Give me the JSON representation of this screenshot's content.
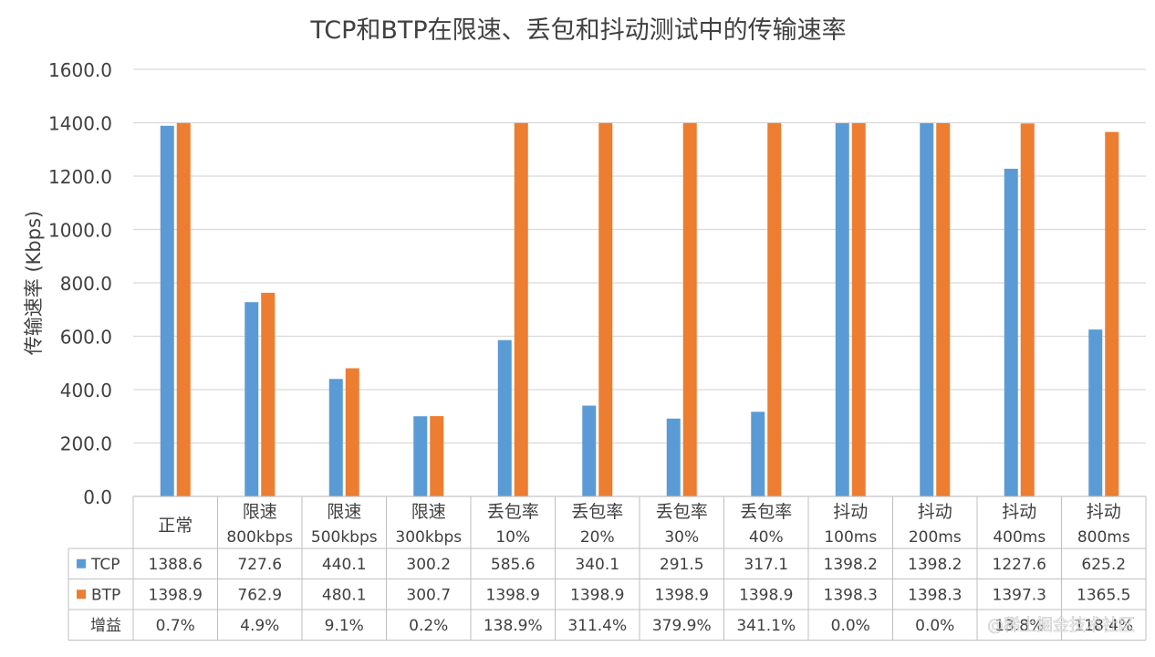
{
  "chart_data": {
    "type": "bar",
    "title": "TCP和BTP在限速、丢包和抖动测试中的传输速率",
    "ylabel": "传输速率 (Kbps)",
    "xlabel": "",
    "ylim": [
      0,
      1600
    ],
    "yticks": [
      "0.0",
      "200.0",
      "400.0",
      "600.0",
      "800.0",
      "1000.0",
      "1200.0",
      "1400.0",
      "1600.0"
    ],
    "grid": true,
    "categories": [
      [
        "正常"
      ],
      [
        "限速",
        "800kbps"
      ],
      [
        "限速",
        "500kbps"
      ],
      [
        "限速",
        "300kbps"
      ],
      [
        "丢包率",
        "10%"
      ],
      [
        "丢包率",
        "20%"
      ],
      [
        "丢包率",
        "30%"
      ],
      [
        "丢包率",
        "40%"
      ],
      [
        "抖动",
        "100ms"
      ],
      [
        "抖动",
        "200ms"
      ],
      [
        "抖动",
        "400ms"
      ],
      [
        "抖动",
        "800ms"
      ]
    ],
    "series": [
      {
        "name": "TCP",
        "color": "#5B9BD5",
        "values": [
          1388.6,
          727.6,
          440.1,
          300.2,
          585.6,
          340.1,
          291.5,
          317.1,
          1398.2,
          1398.2,
          1227.6,
          625.2
        ],
        "labels": [
          "1388.6",
          "727.6",
          "440.1",
          "300.2",
          "585.6",
          "340.1",
          "291.5",
          "317.1",
          "1398.2",
          "1398.2",
          "1227.6",
          "625.2"
        ]
      },
      {
        "name": "BTP",
        "color": "#ED7D31",
        "values": [
          1398.9,
          762.9,
          480.1,
          300.7,
          1398.9,
          1398.9,
          1398.9,
          1398.9,
          1398.3,
          1398.3,
          1397.3,
          1365.5
        ],
        "labels": [
          "1398.9",
          "762.9",
          "480.1",
          "300.7",
          "1398.9",
          "1398.9",
          "1398.9",
          "1398.9",
          "1398.3",
          "1398.3",
          "1397.3",
          "1365.5"
        ]
      }
    ],
    "gain": {
      "name": "增益",
      "labels": [
        "0.7%",
        "4.9%",
        "9.1%",
        "0.2%",
        "138.9%",
        "311.4%",
        "379.9%",
        "341.1%",
        "0.0%",
        "0.0%",
        "13.8%",
        "118.4%"
      ]
    }
  },
  "watermark": "@稀土掘金技术社区"
}
